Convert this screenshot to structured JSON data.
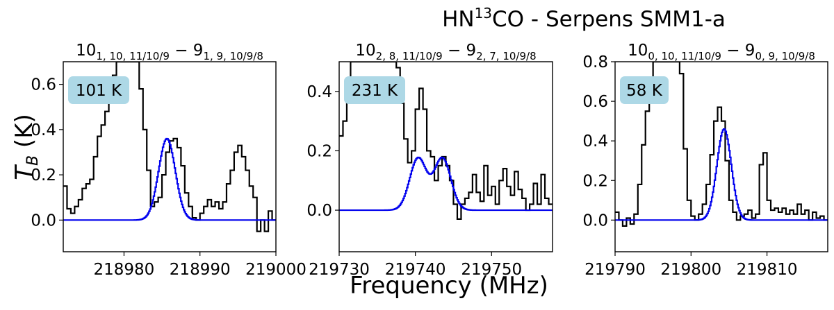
{
  "figure": {
    "title": "HN¹³CO - Serpens SMM1-a",
    "title_main": "HN",
    "title_sup": "13",
    "title_rest": "CO - Serpens SMM1-a",
    "xlabel": "Frequency (MHz)",
    "ylabel_main": "T",
    "ylabel_sub": "B",
    "ylabel_rest": " (K)"
  },
  "colors": {
    "observed": "#000000",
    "model": "#0000ee",
    "badge": "#add8e6"
  },
  "chart_data": [
    {
      "type": "line",
      "title_parts": {
        "a": "10",
        "a_sub": "1, 10, 11/10/9",
        "b": " − 9",
        "b_sub": "1, 9, 10/9/8"
      },
      "badge": "101 K",
      "xlim": [
        218972,
        219000
      ],
      "ylim": [
        -0.14,
        0.7
      ],
      "xticks": [
        218980,
        218990,
        219000
      ],
      "xtick_labels": [
        "218980",
        "218990",
        "219000"
      ],
      "yticks": [
        0.0,
        0.2,
        0.4,
        0.6
      ],
      "ytick_labels": [
        "0.0",
        "0.2",
        "0.4",
        "0.6"
      ],
      "series": [
        {
          "role": "observed",
          "step": true,
          "x": [
            218972.0,
            218972.5,
            218973.0,
            218973.5,
            218974.0,
            218974.5,
            218975.0,
            218975.5,
            218976.0,
            218976.5,
            218977.0,
            218977.5,
            218978.0,
            218978.5,
            218979.0,
            218979.5,
            218980.0,
            218980.5,
            218981.0,
            218981.5,
            218982.0,
            218982.5,
            218983.0,
            218983.5,
            218984.0,
            218984.5,
            218985.0,
            218985.5,
            218986.0,
            218986.5,
            218987.0,
            218987.5,
            218988.0,
            218988.5,
            218989.0,
            218989.5,
            218990.0,
            218990.5,
            218991.0,
            218991.5,
            218992.0,
            218992.5,
            218993.0,
            218993.5,
            218994.0,
            218994.5,
            218995.0,
            218995.5,
            218996.0,
            218996.5,
            218997.0,
            218997.5,
            218998.0,
            218998.5,
            218999.0,
            218999.5
          ],
          "y": [
            0.15,
            0.05,
            0.03,
            0.06,
            0.09,
            0.14,
            0.16,
            0.18,
            0.28,
            0.37,
            0.42,
            0.48,
            0.55,
            0.64,
            0.7,
            0.7,
            0.7,
            0.7,
            0.7,
            0.7,
            0.58,
            0.4,
            0.22,
            0.06,
            0.08,
            0.1,
            0.2,
            0.3,
            0.35,
            0.36,
            0.32,
            0.24,
            0.12,
            0.06,
            0.01,
            0.0,
            0.03,
            0.06,
            0.09,
            0.06,
            0.08,
            0.05,
            0.08,
            0.16,
            0.22,
            0.3,
            0.33,
            0.28,
            0.22,
            0.15,
            0.1,
            -0.05,
            0.0,
            -0.05,
            0.04,
            0.0
          ]
        },
        {
          "role": "model",
          "step": true,
          "peak": 0.36,
          "center": 218985.6,
          "sigma": 1.1
        }
      ]
    },
    {
      "type": "line",
      "title_parts": {
        "a": "10",
        "a_sub": "2, 8, 11/10/9",
        "b": " − 9",
        "b_sub": "2, 7, 10/9/8"
      },
      "badge": "231 K",
      "xlim": [
        219730,
        219758
      ],
      "ylim": [
        -0.14,
        0.5
      ],
      "xticks": [
        219730,
        219740,
        219750
      ],
      "xtick_labels": [
        "219730",
        "219740",
        "219750"
      ],
      "yticks": [
        0.0,
        0.2,
        0.4
      ],
      "ytick_labels": [
        "0.0",
        "0.2",
        "0.4"
      ],
      "series": [
        {
          "role": "observed",
          "step": true,
          "x": [
            219730.0,
            219730.5,
            219731.0,
            219731.5,
            219732.0,
            219732.5,
            219733.0,
            219733.5,
            219734.0,
            219734.5,
            219735.0,
            219735.5,
            219736.0,
            219736.5,
            219737.0,
            219737.5,
            219738.0,
            219738.5,
            219739.0,
            219739.5,
            219740.0,
            219740.5,
            219741.0,
            219741.5,
            219742.0,
            219742.5,
            219743.0,
            219743.5,
            219744.0,
            219744.5,
            219745.0,
            219745.5,
            219746.0,
            219746.5,
            219747.0,
            219747.5,
            219748.0,
            219748.5,
            219749.0,
            219749.5,
            219750.0,
            219750.5,
            219751.0,
            219751.5,
            219752.0,
            219752.5,
            219753.0,
            219753.5,
            219754.0,
            219754.5,
            219755.0,
            219755.5,
            219756.0,
            219756.5,
            219757.0,
            219757.5
          ],
          "y": [
            0.25,
            0.3,
            0.4,
            0.5,
            0.5,
            0.5,
            0.5,
            0.5,
            0.5,
            0.5,
            0.5,
            0.5,
            0.5,
            0.5,
            0.5,
            0.48,
            0.36,
            0.24,
            0.16,
            0.2,
            0.34,
            0.41,
            0.34,
            0.2,
            0.18,
            0.1,
            0.15,
            0.18,
            0.15,
            0.1,
            0.02,
            -0.03,
            0.02,
            0.04,
            0.06,
            0.12,
            0.06,
            0.03,
            0.15,
            0.05,
            0.08,
            0.02,
            0.1,
            0.14,
            0.08,
            0.05,
            0.13,
            0.07,
            0.04,
            0.0,
            0.02,
            0.09,
            0.02,
            0.12,
            0.04,
            0.02
          ]
        },
        {
          "role": "model",
          "step": true,
          "components": [
            {
              "peak": 0.175,
              "center": 219740.3,
              "sigma": 1.1
            },
            {
              "peak": 0.175,
              "center": 219743.5,
              "sigma": 1.1
            }
          ]
        }
      ]
    },
    {
      "type": "line",
      "title_parts": {
        "a": "10",
        "a_sub": "0, 10, 11/10/9",
        "b": " − 9",
        "b_sub": "0, 9, 10/9/8"
      },
      "badge": "58 K",
      "xlim": [
        219790,
        219818
      ],
      "ylim": [
        -0.16,
        0.8
      ],
      "xticks": [
        219790,
        219800,
        219810
      ],
      "xtick_labels": [
        "219790",
        "219800",
        "219810"
      ],
      "yticks": [
        0.0,
        0.2,
        0.4,
        0.6,
        0.8
      ],
      "ytick_labels": [
        "0.0",
        "0.2",
        "0.4",
        "0.6",
        "0.8"
      ],
      "series": [
        {
          "role": "observed",
          "step": true,
          "x": [
            219790.0,
            219790.5,
            219791.0,
            219791.5,
            219792.0,
            219792.5,
            219793.0,
            219793.5,
            219794.0,
            219794.5,
            219795.0,
            219795.5,
            219796.0,
            219796.5,
            219797.0,
            219797.5,
            219798.0,
            219798.5,
            219799.0,
            219799.5,
            219800.0,
            219800.5,
            219801.0,
            219801.5,
            219802.0,
            219802.5,
            219803.0,
            219803.5,
            219804.0,
            219804.5,
            219805.0,
            219805.5,
            219806.0,
            219806.5,
            219807.0,
            219807.5,
            219808.0,
            219808.5,
            219809.0,
            219809.5,
            219810.0,
            219810.5,
            219811.0,
            219811.5,
            219812.0,
            219812.5,
            219813.0,
            219813.5,
            219814.0,
            219814.5,
            219815.0,
            219815.5,
            219816.0,
            219816.5,
            219817.0,
            219817.5
          ],
          "y": [
            0.04,
            0.0,
            -0.03,
            0.01,
            -0.02,
            0.03,
            0.18,
            0.38,
            0.55,
            0.64,
            0.8,
            0.8,
            0.8,
            0.8,
            0.8,
            0.8,
            0.8,
            0.74,
            0.36,
            0.1,
            0.02,
            0.0,
            0.03,
            0.08,
            0.18,
            0.33,
            0.5,
            0.57,
            0.5,
            0.3,
            0.1,
            0.04,
            0.0,
            0.02,
            0.03,
            0.05,
            0.01,
            0.03,
            0.28,
            0.34,
            0.1,
            0.05,
            0.06,
            0.04,
            0.06,
            0.03,
            0.05,
            0.03,
            0.08,
            0.03,
            0.05,
            0.0,
            0.04,
            0.01,
            0.02,
            0.0
          ]
        },
        {
          "role": "model",
          "step": true,
          "peak": 0.46,
          "center": 219804.3,
          "sigma": 0.95
        }
      ]
    }
  ]
}
